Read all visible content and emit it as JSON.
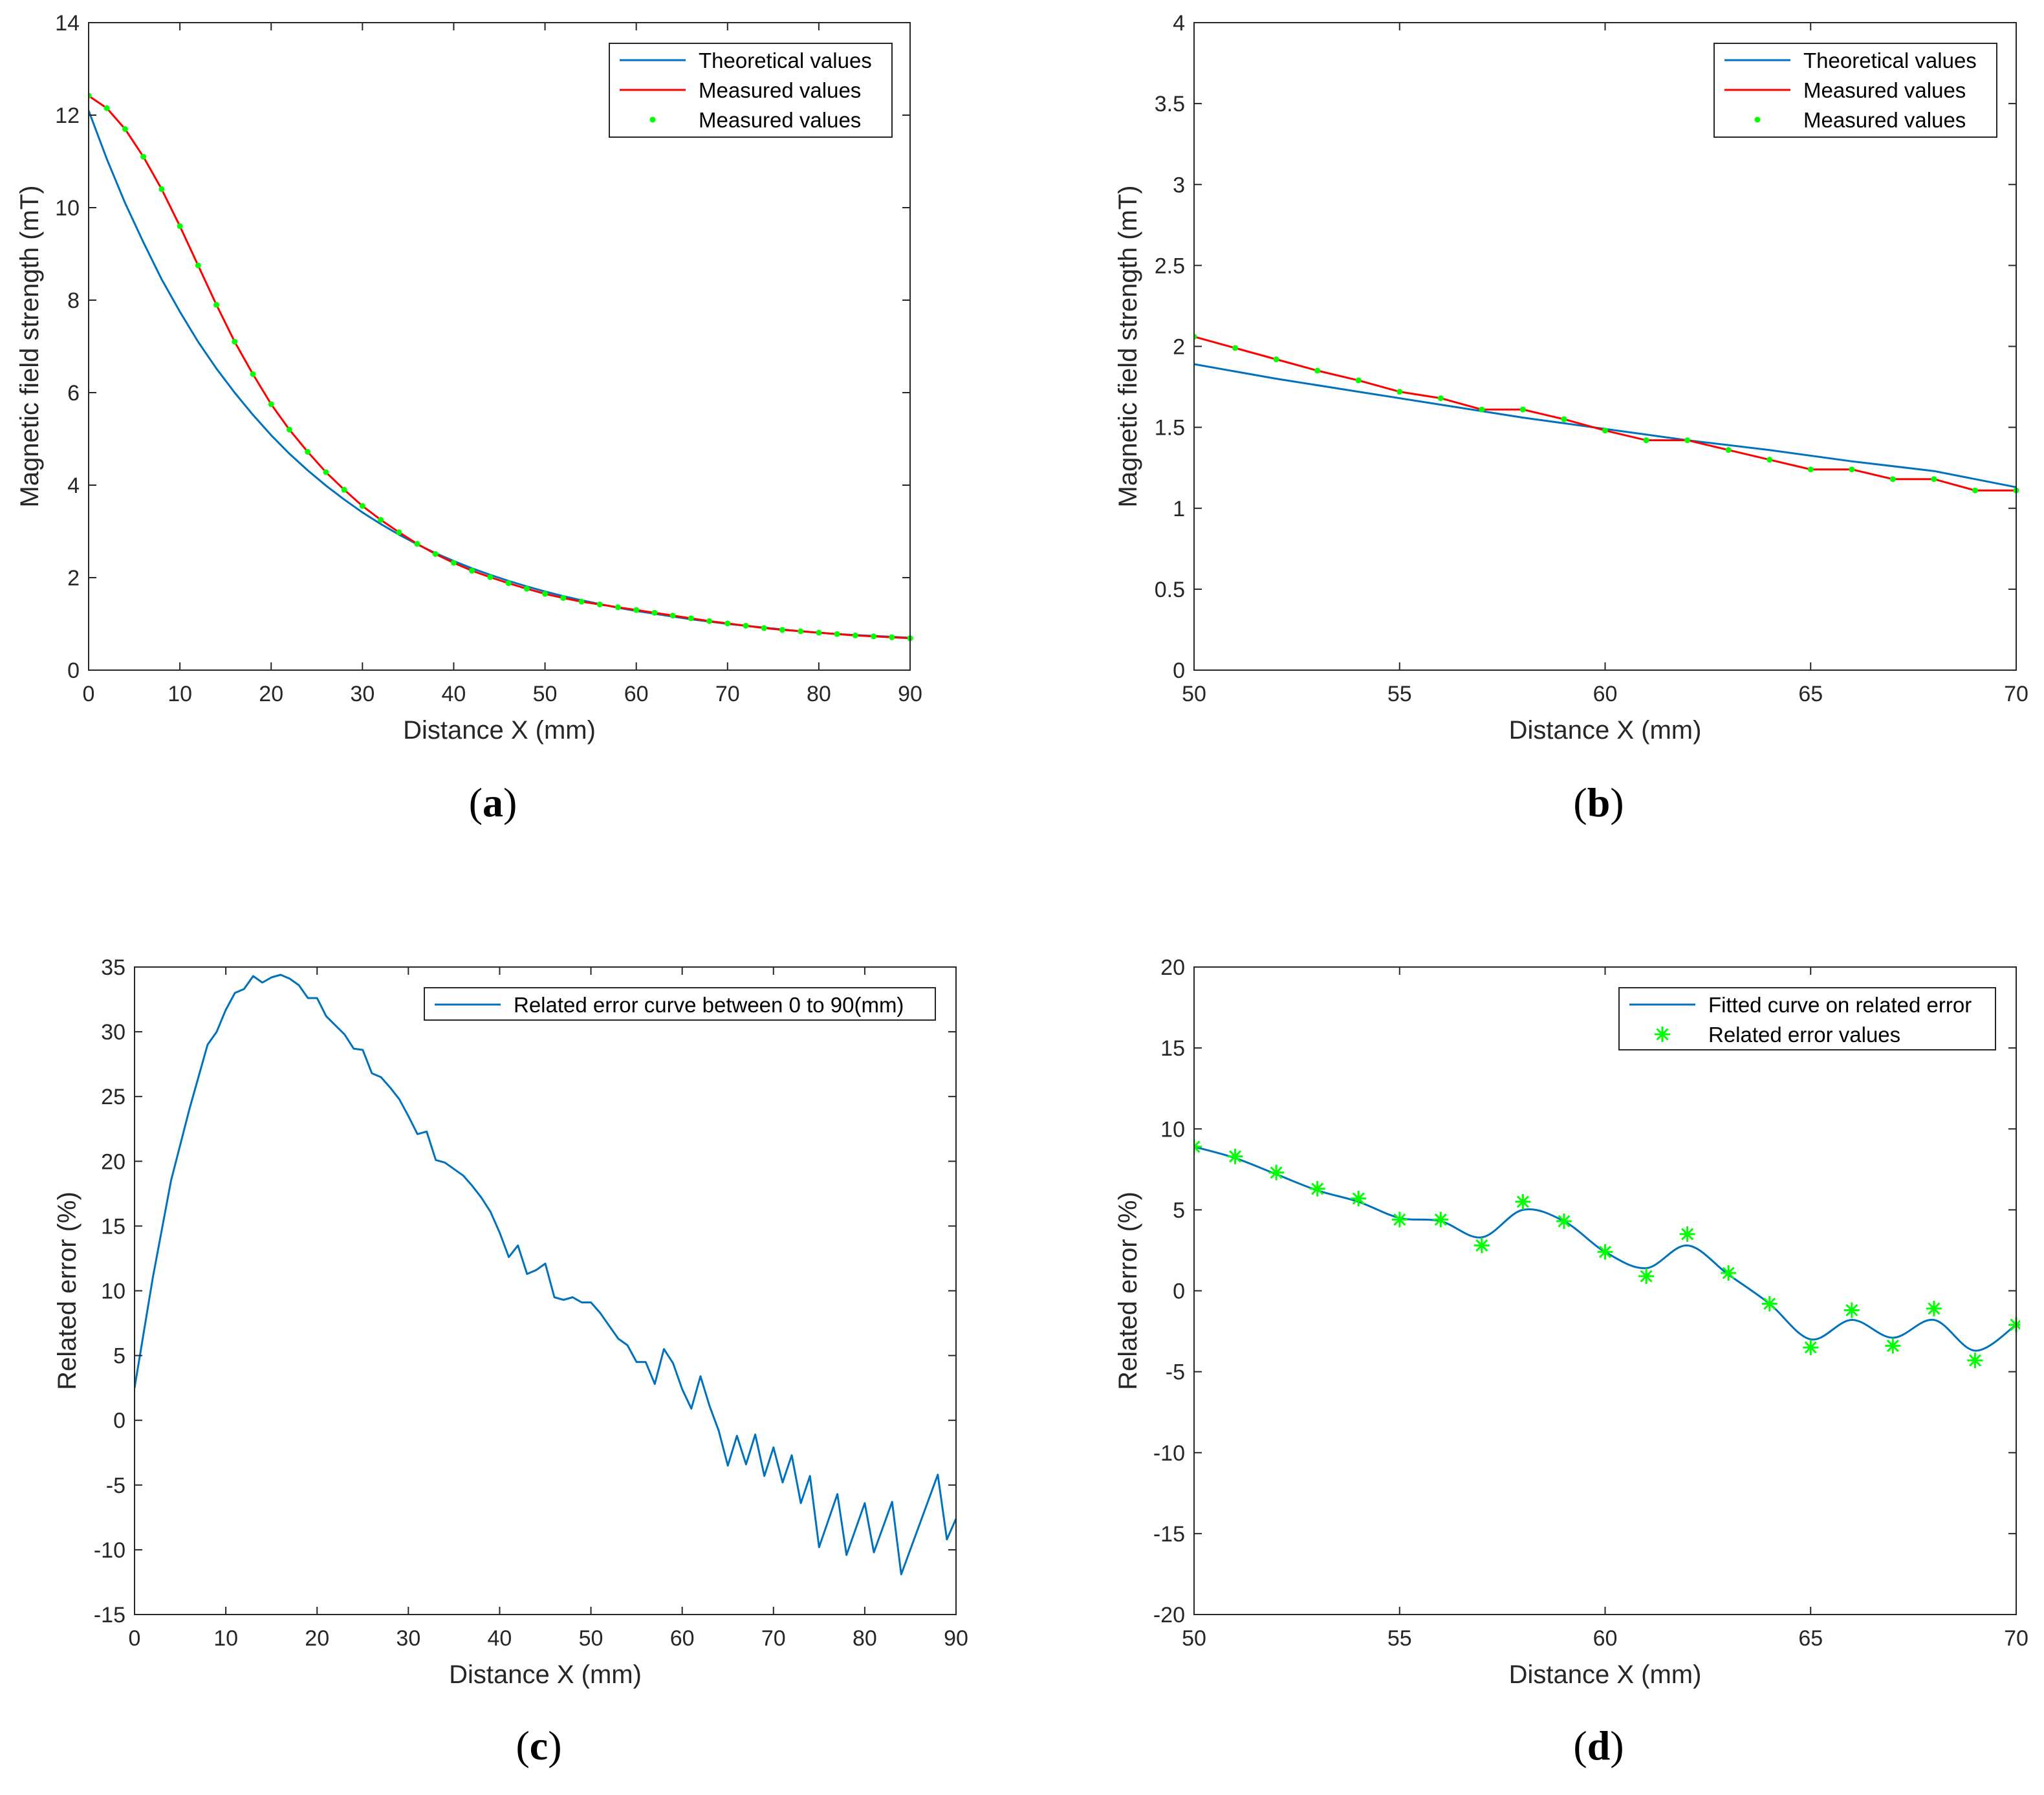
{
  "colors": {
    "theoretical": "#0072BD",
    "measured_line": "#FF0000",
    "measured_marker": "#00FF00",
    "axis": "#262626"
  },
  "chart_data": [
    {
      "id": "a",
      "caption_letter": "a",
      "type": "line",
      "xlabel": "Distance X (mm)",
      "ylabel": "Magnetic field strength (mT)",
      "xlim": [
        0,
        90
      ],
      "ylim": [
        0,
        14
      ],
      "xticks": [
        0,
        10,
        20,
        30,
        40,
        50,
        60,
        70,
        80,
        90
      ],
      "yticks": [
        0,
        2,
        4,
        6,
        8,
        10,
        12,
        14
      ],
      "xtick_labels": [
        "0",
        "10",
        "20",
        "30",
        "40",
        "50",
        "60",
        "70",
        "80",
        "90"
      ],
      "ytick_labels": [
        "0",
        "2",
        "4",
        "6",
        "8",
        "10",
        "12",
        "14"
      ],
      "legend": [
        "Theoretical values",
        "Measured values",
        "Measured values"
      ],
      "legend_position": "top-right",
      "series": [
        {
          "name": "Theoretical values",
          "style": "line",
          "color": "#0072BD",
          "x": [
            0,
            2,
            4,
            6,
            8,
            10,
            12,
            14,
            16,
            18,
            20,
            22,
            24,
            26,
            28,
            30,
            32,
            34,
            36,
            38,
            40,
            42,
            44,
            46,
            48,
            50,
            52,
            54,
            56,
            58,
            60,
            62,
            64,
            66,
            68,
            70,
            72,
            74,
            76,
            78,
            80,
            82,
            84,
            86,
            88,
            90
          ],
          "y": [
            12.1,
            11.05,
            10.1,
            9.25,
            8.45,
            7.75,
            7.1,
            6.52,
            6.0,
            5.52,
            5.08,
            4.68,
            4.32,
            3.99,
            3.69,
            3.41,
            3.16,
            2.93,
            2.72,
            2.53,
            2.36,
            2.2,
            2.06,
            1.93,
            1.81,
            1.7,
            1.6,
            1.51,
            1.43,
            1.35,
            1.28,
            1.22,
            1.16,
            1.1,
            1.05,
            1.0,
            0.96,
            0.92,
            0.88,
            0.84,
            0.81,
            0.78,
            0.76,
            0.74,
            0.72,
            0.7
          ]
        },
        {
          "name": "Measured values",
          "style": "line",
          "color": "#FF0000",
          "x": [
            0,
            2,
            4,
            6,
            8,
            10,
            12,
            14,
            16,
            18,
            20,
            22,
            24,
            26,
            28,
            30,
            32,
            34,
            36,
            38,
            40,
            42,
            44,
            46,
            48,
            50,
            52,
            54,
            56,
            58,
            60,
            62,
            64,
            66,
            68,
            70,
            72,
            74,
            76,
            78,
            80,
            82,
            84,
            86,
            88,
            90
          ],
          "y": [
            12.42,
            12.15,
            11.7,
            11.1,
            10.4,
            9.6,
            8.75,
            7.9,
            7.1,
            6.4,
            5.75,
            5.2,
            4.72,
            4.28,
            3.9,
            3.55,
            3.25,
            2.98,
            2.73,
            2.51,
            2.32,
            2.15,
            2.01,
            1.88,
            1.76,
            1.65,
            1.56,
            1.48,
            1.42,
            1.36,
            1.3,
            1.24,
            1.18,
            1.12,
            1.06,
            1.01,
            0.96,
            0.91,
            0.87,
            0.84,
            0.81,
            0.78,
            0.75,
            0.73,
            0.71,
            0.69
          ]
        },
        {
          "name": "Measured values",
          "style": "marker",
          "color": "#00FF00",
          "x": [
            0,
            2,
            4,
            6,
            8,
            10,
            12,
            14,
            16,
            18,
            20,
            22,
            24,
            26,
            28,
            30,
            32,
            34,
            36,
            38,
            40,
            42,
            44,
            46,
            48,
            50,
            52,
            54,
            56,
            58,
            60,
            62,
            64,
            66,
            68,
            70,
            72,
            74,
            76,
            78,
            80,
            82,
            84,
            86,
            88,
            90
          ],
          "y": [
            12.42,
            12.15,
            11.7,
            11.1,
            10.4,
            9.6,
            8.75,
            7.9,
            7.1,
            6.4,
            5.75,
            5.2,
            4.72,
            4.28,
            3.9,
            3.55,
            3.25,
            2.98,
            2.73,
            2.51,
            2.32,
            2.15,
            2.01,
            1.88,
            1.76,
            1.65,
            1.56,
            1.48,
            1.42,
            1.36,
            1.3,
            1.24,
            1.18,
            1.12,
            1.06,
            1.01,
            0.96,
            0.91,
            0.87,
            0.84,
            0.81,
            0.78,
            0.75,
            0.73,
            0.71,
            0.69
          ]
        }
      ]
    },
    {
      "id": "b",
      "caption_letter": "b",
      "type": "line",
      "xlabel": "Distance X (mm)",
      "ylabel": "Magnetic field strength (mT)",
      "xlim": [
        50,
        70
      ],
      "ylim": [
        0,
        4
      ],
      "xticks": [
        50,
        55,
        60,
        65,
        70
      ],
      "yticks": [
        0,
        0.5,
        1,
        1.5,
        2,
        2.5,
        3,
        3.5,
        4
      ],
      "xtick_labels": [
        "50",
        "55",
        "60",
        "65",
        "70"
      ],
      "ytick_labels": [
        "0",
        "0.5",
        "1",
        "1.5",
        "2",
        "2.5",
        "3",
        "3.5",
        "4"
      ],
      "legend": [
        "Theoretical values",
        "Measured values",
        "Measured values"
      ],
      "legend_position": "top-right",
      "series": [
        {
          "name": "Theoretical values",
          "style": "line",
          "color": "#0072BD",
          "x": [
            50,
            52,
            54,
            56,
            58,
            60,
            62,
            64,
            66,
            68,
            70
          ],
          "y": [
            1.89,
            1.8,
            1.72,
            1.64,
            1.56,
            1.49,
            1.42,
            1.36,
            1.29,
            1.23,
            1.13
          ]
        },
        {
          "name": "Measured values",
          "style": "line",
          "color": "#FF0000",
          "x": [
            50,
            51,
            52,
            53,
            54,
            55,
            56,
            57,
            58,
            59,
            60,
            61,
            62,
            63,
            64,
            65,
            66,
            67,
            68,
            69,
            70
          ],
          "y": [
            2.06,
            1.99,
            1.92,
            1.85,
            1.79,
            1.72,
            1.68,
            1.61,
            1.61,
            1.55,
            1.48,
            1.42,
            1.42,
            1.36,
            1.3,
            1.24,
            1.24,
            1.18,
            1.18,
            1.11,
            1.11
          ]
        },
        {
          "name": "Measured values",
          "style": "marker",
          "color": "#00FF00",
          "x": [
            50,
            51,
            52,
            53,
            54,
            55,
            56,
            57,
            58,
            59,
            60,
            61,
            62,
            63,
            64,
            65,
            66,
            67,
            68,
            69,
            70
          ],
          "y": [
            2.06,
            1.99,
            1.92,
            1.85,
            1.79,
            1.72,
            1.68,
            1.61,
            1.61,
            1.55,
            1.48,
            1.42,
            1.42,
            1.36,
            1.3,
            1.24,
            1.24,
            1.18,
            1.18,
            1.11,
            1.11
          ]
        }
      ]
    },
    {
      "id": "c",
      "caption_letter": "c",
      "type": "line",
      "xlabel": "Distance X (mm)",
      "ylabel": "Related error (%)",
      "xlim": [
        0,
        90
      ],
      "ylim": [
        -15,
        35
      ],
      "xticks": [
        0,
        10,
        20,
        30,
        40,
        50,
        60,
        70,
        80,
        90
      ],
      "yticks": [
        -15,
        -10,
        -5,
        0,
        5,
        10,
        15,
        20,
        25,
        30,
        35
      ],
      "xtick_labels": [
        "0",
        "10",
        "20",
        "30",
        "40",
        "50",
        "60",
        "70",
        "80",
        "90"
      ],
      "ytick_labels": [
        "-15",
        "-10",
        "-5",
        "0",
        "5",
        "10",
        "15",
        "20",
        "25",
        "30",
        "35"
      ],
      "legend": [
        "Related error curve between 0 to 90(mm)"
      ],
      "legend_position": "top-right",
      "series": [
        {
          "name": "Related error curve between 0 to 90(mm)",
          "style": "line",
          "color": "#0072BD",
          "x": [
            0,
            2,
            4,
            6,
            7,
            8,
            9,
            10,
            11,
            12,
            13,
            14,
            15,
            16,
            17,
            18,
            19,
            20,
            21,
            22,
            23,
            24,
            25,
            26,
            27,
            28,
            29,
            30,
            31,
            32,
            33,
            34,
            35,
            36,
            37,
            38,
            39,
            40,
            41,
            42,
            43,
            44,
            45,
            46,
            47,
            48,
            49,
            50,
            51,
            52,
            53,
            54,
            55,
            56,
            57,
            58,
            59,
            60,
            61,
            62,
            63,
            64,
            65,
            66,
            67,
            68,
            69,
            70,
            71,
            72,
            73,
            74,
            75,
            77,
            78,
            80,
            81,
            83,
            84,
            88,
            89,
            90
          ],
          "y": [
            2.5,
            11,
            18.5,
            24,
            26.5,
            29,
            30,
            31.7,
            33,
            33.3,
            34.3,
            33.8,
            34.2,
            34.4,
            34.1,
            33.6,
            32.6,
            32.6,
            31.2,
            30.5,
            29.8,
            28.7,
            28.6,
            26.8,
            26.5,
            25.7,
            24.8,
            23.5,
            22.1,
            22.3,
            20.1,
            19.9,
            19.4,
            18.9,
            18.1,
            17.2,
            16.1,
            14.5,
            12.6,
            13.5,
            11.3,
            11.6,
            12.1,
            9.5,
            9.3,
            9.5,
            9.1,
            9.1,
            8.3,
            7.3,
            6.3,
            5.8,
            4.5,
            4.5,
            2.8,
            5.5,
            4.4,
            2.4,
            0.9,
            3.4,
            1.1,
            -0.8,
            -3.5,
            -1.2,
            -3.4,
            -1.1,
            -4.3,
            -2.1,
            -4.8,
            -2.7,
            -6.4,
            -4.3,
            -9.8,
            -5.7,
            -10.4,
            -6.4,
            -10.2,
            -6.3,
            -11.9,
            -4.2,
            -9.2,
            -7.6
          ]
        }
      ]
    },
    {
      "id": "d",
      "caption_letter": "d",
      "type": "line",
      "xlabel": "Distance X (mm)",
      "ylabel": "Related error (%)",
      "xlim": [
        50,
        70
      ],
      "ylim": [
        -20,
        20
      ],
      "xticks": [
        50,
        55,
        60,
        65,
        70
      ],
      "yticks": [
        -20,
        -15,
        -10,
        -5,
        0,
        5,
        10,
        15,
        20
      ],
      "xtick_labels": [
        "50",
        "55",
        "60",
        "65",
        "70"
      ],
      "ytick_labels": [
        "-20",
        "-15",
        "-10",
        "-5",
        "0",
        "5",
        "10",
        "15",
        "20"
      ],
      "legend": [
        "Fitted curve on related error",
        "Related error values"
      ],
      "legend_position": "top-right",
      "series": [
        {
          "name": "Fitted curve on related error",
          "style": "smooth",
          "color": "#0072BD",
          "x": [
            50,
            51,
            52,
            53,
            54,
            55,
            56,
            57,
            58,
            59,
            60,
            61,
            62,
            63,
            64,
            65,
            66,
            67,
            68,
            69,
            70
          ],
          "y": [
            8.9,
            8.2,
            7.2,
            6.2,
            5.5,
            4.5,
            4.3,
            3.3,
            5.0,
            4.3,
            2.4,
            1.4,
            2.8,
            1.0,
            -0.8,
            -3.0,
            -1.8,
            -2.9,
            -1.8,
            -3.7,
            -2.1
          ]
        },
        {
          "name": "Related error values",
          "style": "star",
          "color": "#00FF00",
          "x": [
            50,
            51,
            52,
            53,
            54,
            55,
            56,
            57,
            58,
            59,
            60,
            61,
            62,
            63,
            64,
            65,
            66,
            67,
            68,
            69,
            70
          ],
          "y": [
            8.9,
            8.3,
            7.3,
            6.3,
            5.7,
            4.4,
            4.4,
            2.8,
            5.5,
            4.3,
            2.4,
            0.9,
            3.5,
            1.1,
            -0.8,
            -3.5,
            -1.2,
            -3.4,
            -1.1,
            -4.3,
            -2.1
          ]
        }
      ]
    }
  ]
}
